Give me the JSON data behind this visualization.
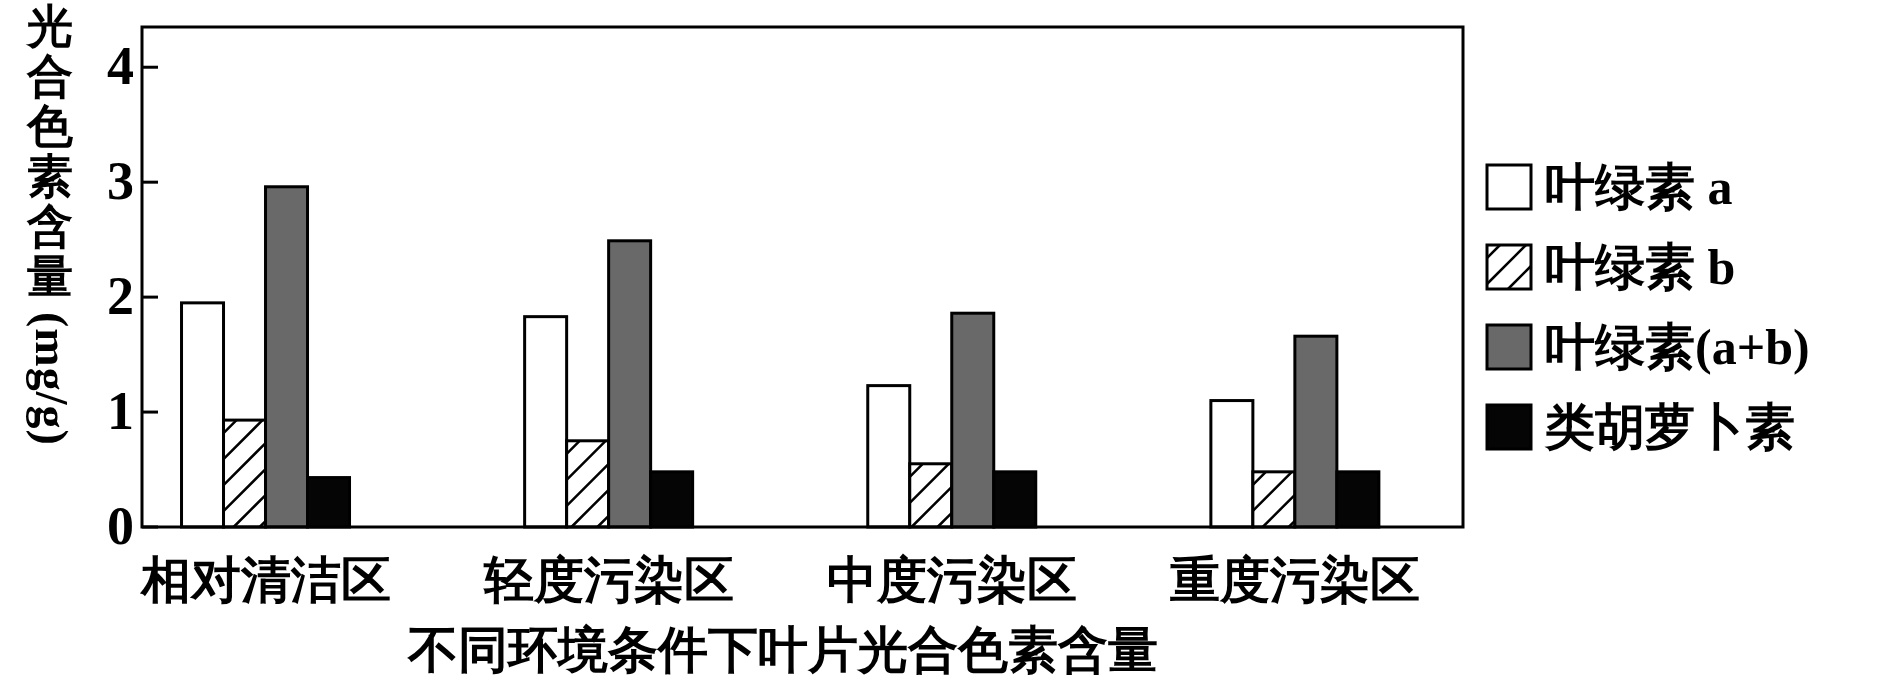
{
  "chart_data": {
    "type": "bar",
    "xlabel": "不同环境条件下叶片光合色素含量",
    "ylabel": "光合色素含量(mg/g)",
    "categories": [
      "相对清洁区",
      "轻度污染区",
      "中度污染区",
      "重度污染区"
    ],
    "series": [
      {
        "name": "叶绿素 a",
        "color": "#ffffff",
        "values": [
          1.95,
          1.83,
          1.23,
          1.1
        ]
      },
      {
        "name": "叶绿素 b",
        "color": "#ffffff",
        "values": [
          0.93,
          0.75,
          0.55,
          0.48
        ]
      },
      {
        "name": "叶绿素(a+b)",
        "color": "#696969",
        "values": [
          2.96,
          2.49,
          1.86,
          1.66
        ]
      },
      {
        "name": "类胡萝卜素",
        "color": "#050505",
        "values": [
          0.43,
          0.48,
          0.48,
          0.48
        ]
      }
    ],
    "ylim": [
      0,
      4.35
    ],
    "yticks": [
      0,
      1,
      2,
      3,
      4
    ],
    "legend": "right",
    "grid": false
  }
}
